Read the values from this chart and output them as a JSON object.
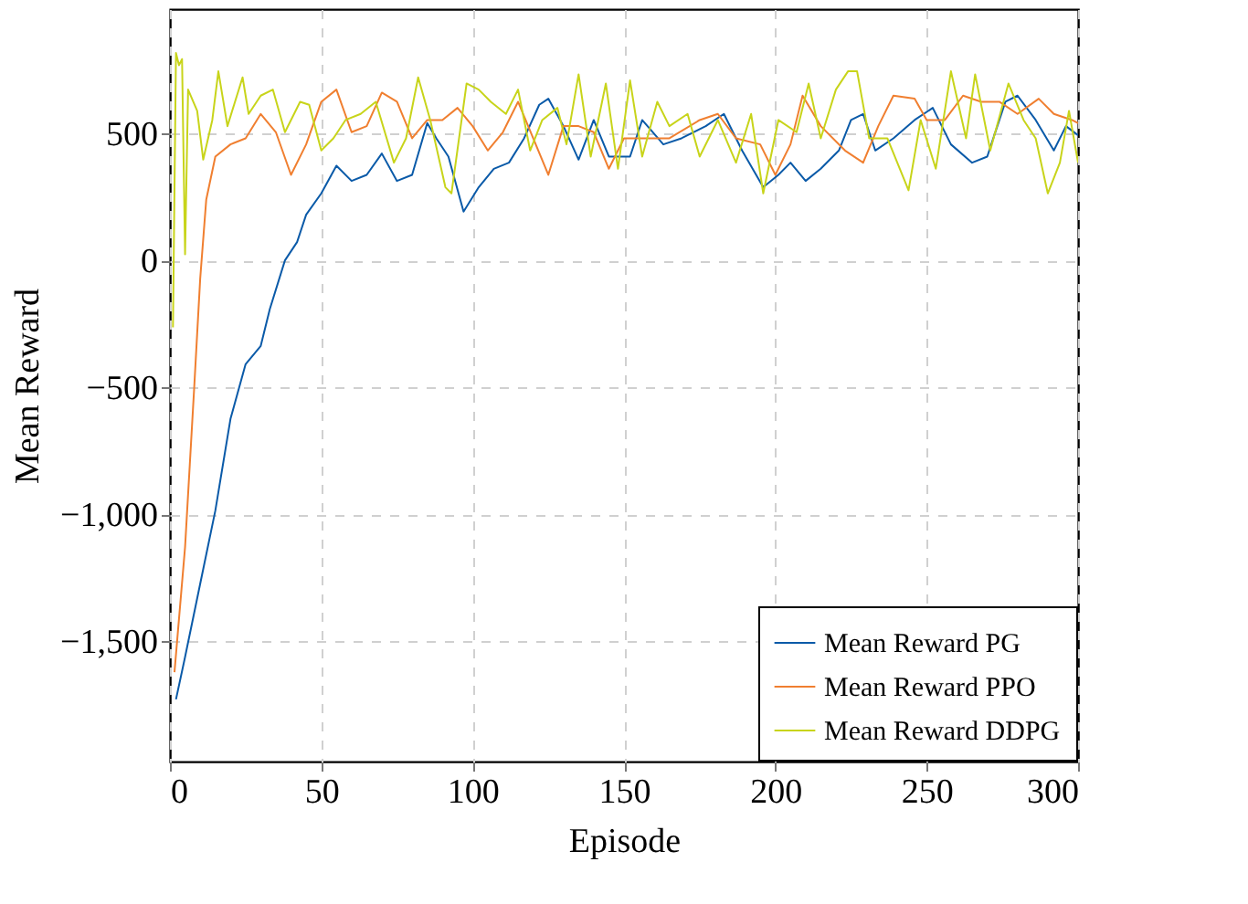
{
  "chart_data": {
    "type": "line",
    "xlabel": "Episode",
    "ylabel": "Mean Reward",
    "xlim": [
      0,
      300
    ],
    "ylim": [
      -1975,
      990
    ],
    "xticks": [
      0,
      50,
      100,
      150,
      200,
      250,
      300
    ],
    "yticks": [
      {
        "value": -1500,
        "label": "−1,500"
      },
      {
        "value": -1000,
        "label": "−1,000"
      },
      {
        "value": -500,
        "label": "−500"
      },
      0,
      500
    ],
    "grid": true,
    "legend": "bottom right",
    "marker": "none",
    "line_style": "solid",
    "series": [
      {
        "name": "Mean Reward PG",
        "color": "#0a5aa8",
        "x": [
          2,
          5,
          10,
          15,
          20,
          25,
          30,
          33,
          38,
          42,
          45,
          50,
          55,
          60,
          65,
          70,
          75,
          80,
          85,
          88,
          92,
          97,
          102,
          107,
          112,
          117,
          122,
          125,
          130,
          135,
          140,
          145,
          152,
          156,
          163,
          169,
          177,
          183,
          189,
          196,
          201,
          205,
          210,
          215,
          221,
          225,
          229,
          233,
          239,
          246,
          252,
          258,
          265,
          270,
          276,
          280,
          286,
          292,
          296,
          300
        ],
        "values": [
          -1730,
          -1563,
          -1274,
          -986,
          -625,
          -409,
          -337,
          -192,
          0,
          72,
          180,
          264,
          373,
          313,
          337,
          421,
          313,
          337,
          541,
          481,
          409,
          192,
          288,
          361,
          385,
          481,
          613,
          637,
          529,
          397,
          553,
          409,
          409,
          553,
          457,
          481,
          529,
          577,
          433,
          288,
          337,
          385,
          313,
          361,
          433,
          553,
          577,
          433,
          481,
          553,
          601,
          457,
          385,
          409,
          625,
          649,
          553,
          433,
          529,
          493
        ]
      },
      {
        "name": "Mean Reward PPO",
        "color": "#f07f30",
        "x": [
          1.5,
          5,
          8,
          10,
          12,
          15,
          20,
          25,
          30,
          35,
          40,
          45,
          50,
          55,
          60,
          65,
          70,
          75,
          80,
          85,
          90,
          95,
          100,
          105,
          110,
          115,
          120,
          125,
          130,
          135,
          140,
          145,
          150,
          156,
          165,
          175,
          181,
          187,
          195,
          200,
          205,
          209,
          215,
          223,
          229,
          234,
          239,
          246,
          250,
          256,
          262,
          268,
          274,
          280,
          287,
          292,
          298,
          300
        ],
        "values": [
          -1623,
          -1130,
          -505,
          -72,
          240,
          409,
          457,
          481,
          577,
          505,
          337,
          457,
          625,
          673,
          505,
          529,
          661,
          625,
          481,
          553,
          553,
          601,
          529,
          433,
          505,
          625,
          481,
          337,
          529,
          529,
          505,
          361,
          481,
          481,
          481,
          553,
          577,
          481,
          457,
          337,
          457,
          649,
          529,
          433,
          385,
          529,
          649,
          637,
          553,
          553,
          649,
          625,
          625,
          577,
          637,
          577,
          553,
          541
        ]
      },
      {
        "name": "Mean Reward DDPG",
        "color": "#c8d41a",
        "x": [
          1,
          2,
          3,
          4,
          5,
          6,
          9,
          11,
          14,
          16,
          19,
          24,
          26,
          30,
          34,
          38,
          43,
          46,
          50,
          54,
          58,
          63,
          68,
          74,
          78,
          82,
          86,
          91,
          93,
          98,
          102,
          106,
          111,
          115,
          119,
          123,
          128,
          131,
          135,
          139,
          144,
          148,
          152,
          156,
          161,
          165,
          171,
          175,
          181,
          187,
          192,
          196,
          201,
          207,
          211,
          215,
          220,
          224,
          227,
          231,
          237,
          244,
          248,
          253,
          258,
          263,
          266,
          271,
          277,
          282,
          286,
          290,
          294,
          297,
          300
        ],
        "values": [
          -264,
          817,
          769,
          793,
          24,
          673,
          589,
          397,
          553,
          745,
          529,
          721,
          577,
          649,
          673,
          505,
          625,
          613,
          433,
          481,
          553,
          577,
          625,
          385,
          481,
          721,
          553,
          288,
          264,
          697,
          673,
          625,
          577,
          673,
          433,
          553,
          601,
          457,
          733,
          409,
          697,
          361,
          709,
          409,
          625,
          529,
          577,
          409,
          553,
          385,
          577,
          264,
          553,
          505,
          697,
          481,
          673,
          745,
          745,
          481,
          481,
          276,
          553,
          361,
          745,
          481,
          733,
          433,
          697,
          553,
          481,
          264,
          385,
          589,
          385
        ]
      }
    ]
  }
}
